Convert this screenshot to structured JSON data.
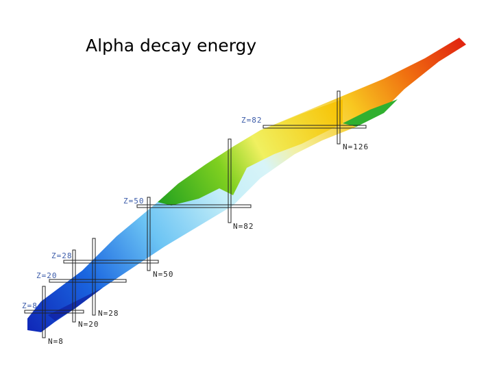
{
  "title": "Alpha decay energy",
  "z_lines": [
    {
      "label": "Z=8"
    },
    {
      "label": "Z=20"
    },
    {
      "label": "Z=28"
    },
    {
      "label": "Z=50"
    },
    {
      "label": "Z=82"
    }
  ],
  "n_lines": [
    {
      "label": "N=8"
    },
    {
      "label": "N=20"
    },
    {
      "label": "N=28"
    },
    {
      "label": "N=50"
    },
    {
      "label": "N=82"
    },
    {
      "label": "N=126"
    }
  ]
}
